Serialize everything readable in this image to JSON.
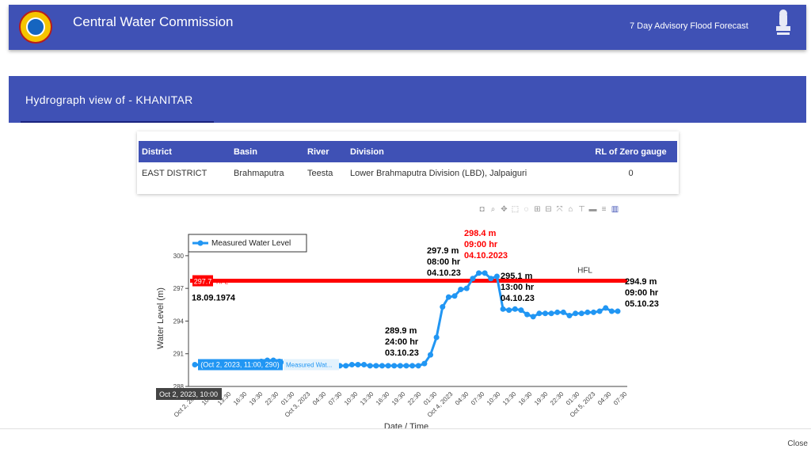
{
  "header": {
    "title": "Central Water Commission",
    "advisory_link": "7 Day Advisory Flood Forecast",
    "emblem_caption": "सत्यमेव जयते"
  },
  "subheader": {
    "title": "Hydrograph view of - KHANITAR"
  },
  "info_table": {
    "headers": [
      "District",
      "Basin",
      "River",
      "Division",
      "RL of Zero gauge"
    ],
    "row": [
      "EAST DISTRICT",
      "Brahmaputra",
      "Teesta",
      "Lower Brahmaputra Division (LBD), Jalpaiguri",
      "0"
    ]
  },
  "modebar_icons": [
    "camera-icon",
    "zoom-icon",
    "pan-icon",
    "box-select-icon",
    "lasso-icon",
    "zoom-in-icon",
    "zoom-out-icon",
    "autoscale-icon",
    "reset-axes-icon",
    "spike-lines-icon",
    "hover-closest-icon",
    "hover-compare-icon",
    "plotly-logo-icon"
  ],
  "chart_data": {
    "type": "line",
    "ylabel": "Water Level (m)",
    "xlabel": "Date / Time",
    "ylim": [
      288,
      300.5
    ],
    "yticks": [
      288,
      291,
      294,
      297,
      300
    ],
    "xticks": [
      "Oct 2, 2023",
      "10:30",
      "13:30",
      "16:30",
      "19:30",
      "22:30",
      "01:30",
      "Oct 3, 2023",
      "04:30",
      "07:30",
      "10:30",
      "13:30",
      "16:30",
      "19:30",
      "22:30",
      "01:30",
      "Oct 4, 2023",
      "04:30",
      "07:30",
      "10:30",
      "13:30",
      "16:30",
      "19:30",
      "22:30",
      "01:30",
      "Oct 5, 2023",
      "04:30",
      "07:30"
    ],
    "legend": "Measured Water Level",
    "legend_position": "top-left",
    "series": [
      {
        "name": "Measured Water Level",
        "color": "#2196f3",
        "points": [
          [
            0,
            290
          ],
          [
            1,
            290
          ],
          [
            2,
            290
          ],
          [
            3,
            290
          ],
          [
            4,
            290
          ],
          [
            5,
            290
          ],
          [
            6,
            290
          ],
          [
            7,
            290
          ],
          [
            8,
            290
          ],
          [
            9,
            290
          ],
          [
            10,
            290.2
          ],
          [
            11,
            290.3
          ],
          [
            12,
            290.4
          ],
          [
            13,
            290.4
          ],
          [
            14,
            290.3
          ],
          [
            15,
            290.2
          ],
          [
            16,
            290.1
          ],
          [
            17,
            290
          ],
          [
            18,
            289.9
          ],
          [
            19,
            289.9
          ],
          [
            20,
            289.9
          ],
          [
            21,
            289.9
          ],
          [
            22,
            289.9
          ],
          [
            23,
            289.9
          ],
          [
            24,
            289.9
          ],
          [
            25,
            289.9
          ],
          [
            26,
            290
          ],
          [
            27,
            290
          ],
          [
            28,
            290
          ],
          [
            29,
            289.9
          ],
          [
            30,
            289.9
          ],
          [
            31,
            289.9
          ],
          [
            32,
            289.9
          ],
          [
            33,
            289.9
          ],
          [
            34,
            289.9
          ],
          [
            35,
            289.9
          ],
          [
            36,
            289.9
          ],
          [
            37,
            289.9
          ],
          [
            38,
            290.1
          ],
          [
            39,
            290.9
          ],
          [
            40,
            292.5
          ],
          [
            41,
            295.3
          ],
          [
            42,
            296.2
          ],
          [
            43,
            296.3
          ],
          [
            44,
            296.9
          ],
          [
            45,
            297
          ],
          [
            46,
            297.9
          ],
          [
            47,
            298.4
          ],
          [
            48,
            298.4
          ],
          [
            49,
            297.9
          ],
          [
            50,
            298.1
          ],
          [
            51,
            295.1
          ],
          [
            52,
            295
          ],
          [
            53,
            295.1
          ],
          [
            54,
            295
          ],
          [
            55,
            294.6
          ],
          [
            56,
            294.4
          ],
          [
            57,
            294.7
          ],
          [
            58,
            294.7
          ],
          [
            59,
            294.7
          ],
          [
            60,
            294.8
          ],
          [
            61,
            294.8
          ],
          [
            62,
            294.5
          ],
          [
            63,
            294.7
          ],
          [
            64,
            294.7
          ],
          [
            65,
            294.8
          ],
          [
            66,
            294.8
          ],
          [
            67,
            294.9
          ],
          [
            68,
            295.2
          ],
          [
            69,
            294.9
          ],
          [
            70,
            294.9
          ]
        ]
      }
    ],
    "hfl": {
      "value": 297.7,
      "label": "HFL",
      "date": "18.09.1974",
      "color": "#ff0000"
    },
    "annotations": [
      {
        "lines": [
          "289.9 m",
          "24:00 hr",
          "03.10.23"
        ],
        "color": "#000000"
      },
      {
        "lines": [
          "297.9 m",
          "08:00 hr",
          "04.10.23"
        ],
        "color": "#000000"
      },
      {
        "lines": [
          "298.4 m",
          "09:00 hr",
          "04.10.2023"
        ],
        "color": "#ff0000"
      },
      {
        "lines": [
          "295.1 m",
          "13:00 hr",
          "04.10.23"
        ],
        "color": "#000000"
      },
      {
        "lines": [
          "294.9 m",
          "09:00 hr",
          "05.10.23"
        ],
        "color": "#000000"
      }
    ],
    "hover": {
      "point_label": "(Oct 2, 2023, 11:00, 290)",
      "series_label": "Measured Wat...",
      "hfl_label": "297.7",
      "hfl_name": "HFL",
      "x_label": "Oct 2, 2023, 10:00"
    }
  },
  "footer": {
    "close_label": "Close"
  }
}
